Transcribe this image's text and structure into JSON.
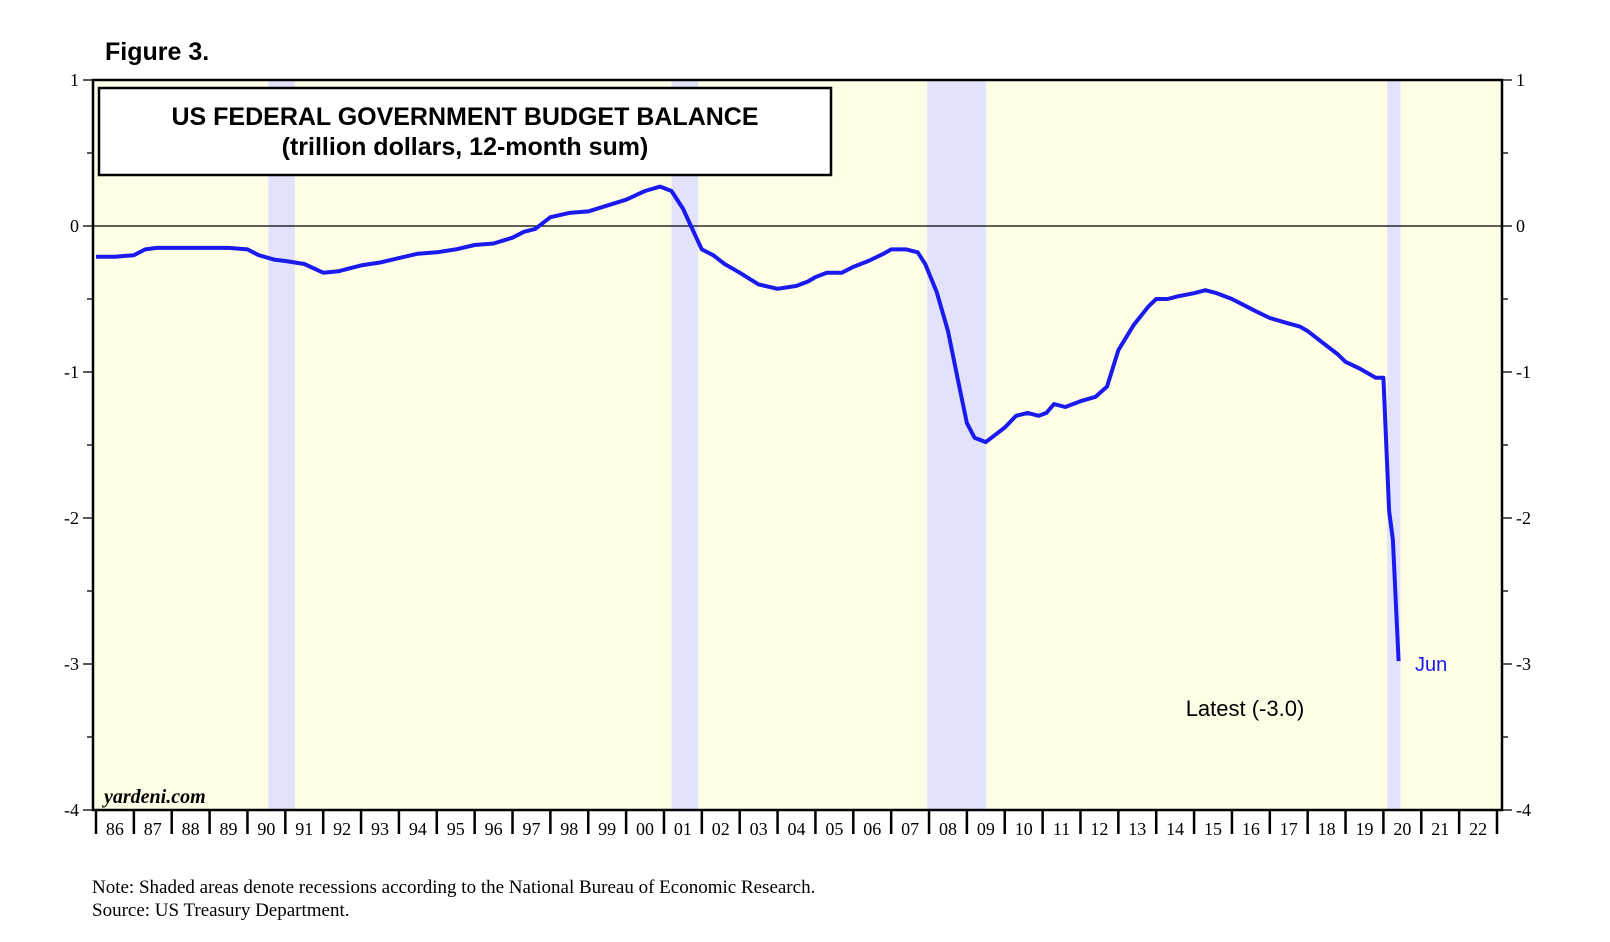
{
  "figure_label": "Figure 3.",
  "colors": {
    "plot_background": "#fefee6",
    "recession_shade": "#e2e3fb",
    "series_line": "#1a1aee",
    "axis": "#000000"
  },
  "chart_data": {
    "type": "line",
    "title": "US FEDERAL GOVERNMENT BUDGET BALANCE",
    "subtitle": "(trillion dollars, 12-month sum)",
    "xlabel": "",
    "ylabel": "",
    "ylim": [
      -4,
      1
    ],
    "y_ticks": [
      1,
      0,
      -1,
      -2,
      -3,
      -4
    ],
    "y_tick_labels": [
      "1",
      "0",
      "-1",
      "-2",
      "-3",
      "-4"
    ],
    "xlim": [
      1986,
      2023
    ],
    "year_labels": [
      "86",
      "87",
      "88",
      "89",
      "90",
      "91",
      "92",
      "93",
      "94",
      "95",
      "96",
      "97",
      "98",
      "99",
      "00",
      "01",
      "02",
      "03",
      "04",
      "05",
      "06",
      "07",
      "08",
      "09",
      "10",
      "11",
      "12",
      "13",
      "14",
      "15",
      "16",
      "17",
      "18",
      "19",
      "20",
      "21",
      "22"
    ],
    "zero_line": true,
    "recessions": [
      [
        1990.55,
        1991.25
      ],
      [
        2001.2,
        2001.9
      ],
      [
        2007.95,
        2009.5
      ],
      [
        2020.1,
        2020.45
      ]
    ],
    "series": [
      {
        "name": "US Federal Budget Balance",
        "x": [
          1986.0,
          1986.5,
          1987.0,
          1987.3,
          1987.6,
          1988.0,
          1988.5,
          1989.0,
          1989.5,
          1990.0,
          1990.3,
          1990.7,
          1991.0,
          1991.5,
          1992.0,
          1992.4,
          1992.7,
          1993.0,
          1993.5,
          1994.0,
          1994.5,
          1995.0,
          1995.5,
          1996.0,
          1996.5,
          1997.0,
          1997.3,
          1997.6,
          1998.0,
          1998.5,
          1999.0,
          1999.5,
          2000.0,
          2000.5,
          2000.9,
          2001.2,
          2001.5,
          2001.8,
          2002.0,
          2002.3,
          2002.6,
          2003.0,
          2003.5,
          2004.0,
          2004.5,
          2004.8,
          2005.0,
          2005.3,
          2005.7,
          2006.0,
          2006.4,
          2006.8,
          2007.0,
          2007.4,
          2007.7,
          2007.9,
          2008.2,
          2008.5,
          2008.8,
          2009.0,
          2009.2,
          2009.5,
          2009.8,
          2010.0,
          2010.3,
          2010.6,
          2010.9,
          2011.1,
          2011.3,
          2011.6,
          2012.0,
          2012.4,
          2012.7,
          2013.0,
          2013.4,
          2013.8,
          2014.0,
          2014.3,
          2014.6,
          2015.0,
          2015.3,
          2015.6,
          2016.0,
          2016.3,
          2016.6,
          2017.0,
          2017.4,
          2017.8,
          2018.0,
          2018.4,
          2018.8,
          2019.0,
          2019.4,
          2019.8,
          2020.0,
          2020.15,
          2020.25,
          2020.4
        ],
        "values": [
          -0.21,
          -0.21,
          -0.2,
          -0.16,
          -0.15,
          -0.15,
          -0.15,
          -0.15,
          -0.15,
          -0.16,
          -0.2,
          -0.23,
          -0.24,
          -0.26,
          -0.32,
          -0.31,
          -0.29,
          -0.27,
          -0.25,
          -0.22,
          -0.19,
          -0.18,
          -0.16,
          -0.13,
          -0.12,
          -0.08,
          -0.04,
          -0.02,
          0.06,
          0.09,
          0.1,
          0.14,
          0.18,
          0.24,
          0.27,
          0.24,
          0.12,
          -0.05,
          -0.16,
          -0.2,
          -0.26,
          -0.32,
          -0.4,
          -0.43,
          -0.41,
          -0.38,
          -0.35,
          -0.32,
          -0.32,
          -0.28,
          -0.24,
          -0.19,
          -0.16,
          -0.16,
          -0.18,
          -0.26,
          -0.45,
          -0.72,
          -1.1,
          -1.35,
          -1.45,
          -1.48,
          -1.42,
          -1.38,
          -1.3,
          -1.28,
          -1.3,
          -1.28,
          -1.22,
          -1.24,
          -1.2,
          -1.17,
          -1.1,
          -0.85,
          -0.68,
          -0.55,
          -0.5,
          -0.5,
          -0.48,
          -0.46,
          -0.44,
          -0.46,
          -0.5,
          -0.54,
          -0.58,
          -0.63,
          -0.66,
          -0.69,
          -0.72,
          -0.8,
          -0.88,
          -0.93,
          -0.98,
          -1.04,
          -1.04,
          -1.95,
          -2.15,
          -2.98
        ]
      }
    ],
    "annotations": {
      "end_label": "Jun",
      "latest": "Latest (-3.0)"
    }
  },
  "brand": "yardeni.com",
  "footnotes": {
    "note": "Note: Shaded areas denote recessions according to the National Bureau of Economic Research.",
    "source": "Source: US Treasury Department."
  }
}
